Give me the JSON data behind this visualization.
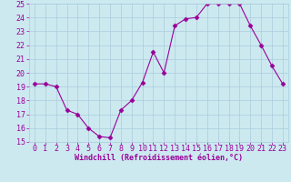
{
  "x": [
    0,
    1,
    2,
    3,
    4,
    5,
    6,
    7,
    8,
    9,
    10,
    11,
    12,
    13,
    14,
    15,
    16,
    17,
    18,
    19,
    20,
    21,
    22,
    23
  ],
  "y": [
    19.2,
    19.2,
    19.0,
    17.3,
    17.0,
    16.0,
    15.4,
    15.3,
    17.3,
    18.0,
    19.3,
    21.5,
    20.0,
    23.4,
    23.9,
    24.0,
    25.0,
    25.0,
    25.0,
    25.0,
    23.4,
    22.0,
    20.5,
    19.2
  ],
  "xlabel": "Windchill (Refroidissement éolien,°C)",
  "xlim": [
    -0.5,
    23.5
  ],
  "ylim": [
    15,
    25
  ],
  "yticks": [
    15,
    16,
    17,
    18,
    19,
    20,
    21,
    22,
    23,
    24,
    25
  ],
  "xticks": [
    0,
    1,
    2,
    3,
    4,
    5,
    6,
    7,
    8,
    9,
    10,
    11,
    12,
    13,
    14,
    15,
    16,
    17,
    18,
    19,
    20,
    21,
    22,
    23
  ],
  "line_color": "#990099",
  "marker": "D",
  "marker_size": 2.5,
  "bg_color": "#cce9f0",
  "grid_color": "#aaccdd",
  "tick_color": "#990099",
  "label_color": "#990099",
  "xlabel_fontsize": 6.0,
  "tick_fontsize": 6.0
}
